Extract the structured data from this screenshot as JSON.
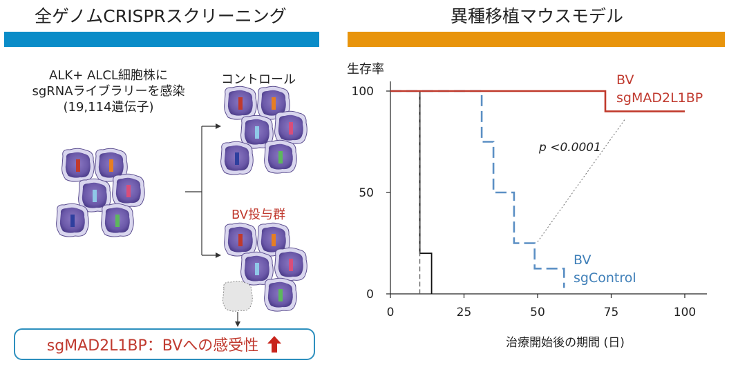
{
  "left_panel": {
    "title": "全ゲノムCRISPRスクリーニング",
    "bar_color": "#0a8cc8",
    "description_lines": [
      "ALK+ ALCL細胞株に",
      "sgRNAライブラリーを感染",
      "(19,114遺伝子)"
    ],
    "control_label": "コントロール",
    "bv_label": "BV投与群",
    "result": {
      "text": "sgMAD2L1BP：BVへの感受性",
      "arrow": "up-arrow-icon",
      "color": "#c03a2f"
    }
  },
  "right_panel": {
    "title": "異種移植マウスモデル",
    "bar_color": "#e8940c"
  },
  "chart_data": {
    "type": "line",
    "step": true,
    "ylabel": "生存率",
    "xlabel": "治療開始後の期間 (日)",
    "xlim": [
      0,
      100
    ],
    "ylim": [
      0,
      100
    ],
    "xticks": [
      "0",
      "25",
      "50",
      "75",
      "100"
    ],
    "yticks": [
      "0",
      "50",
      "100"
    ],
    "annotation": "p <0.0001",
    "series": [
      {
        "label_lines": [
          "BV",
          "sgMAD2L1BP"
        ],
        "color": "#c0392b",
        "style": "solid",
        "points": [
          [
            0,
            100
          ],
          [
            73,
            100
          ],
          [
            73,
            90
          ],
          [
            100,
            90
          ]
        ]
      },
      {
        "label_lines": [
          "BV",
          "sgControl"
        ],
        "color": "#5b8fc4",
        "style": "dashed",
        "points": [
          [
            0,
            100
          ],
          [
            31,
            100
          ],
          [
            31,
            75
          ],
          [
            35,
            75
          ],
          [
            35,
            50
          ],
          [
            42,
            50
          ],
          [
            42,
            25
          ],
          [
            49,
            25
          ],
          [
            49,
            12.5
          ],
          [
            53,
            12.5
          ],
          [
            59,
            12.5
          ],
          [
            59,
            3
          ]
        ]
      },
      {
        "label_lines": [],
        "color": "#555555",
        "style": "dashed-thin",
        "points": [
          [
            0,
            100
          ],
          [
            10,
            100
          ],
          [
            10,
            0
          ]
        ]
      },
      {
        "label_lines": [],
        "color": "#111111",
        "style": "solid-thin",
        "points": [
          [
            0,
            100
          ],
          [
            10,
            100
          ],
          [
            10,
            20
          ],
          [
            14,
            20
          ],
          [
            14,
            0
          ]
        ]
      }
    ]
  }
}
